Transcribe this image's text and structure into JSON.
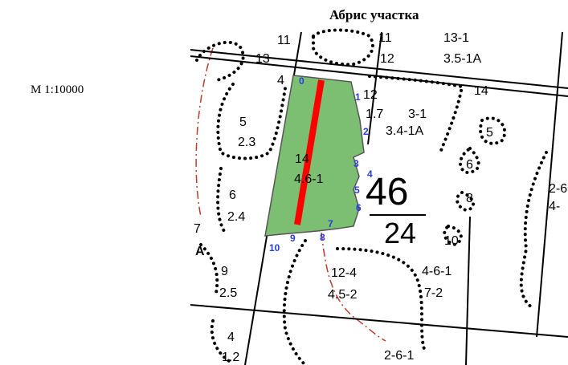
{
  "title": "Абрис участка",
  "scale": "М 1:10000",
  "colors": {
    "plot_fill": "#7dbf72",
    "axis_line": "#ff0000",
    "point_numbers": "#2a3de0",
    "road": "#c0392b"
  },
  "quarter": {
    "number": "46",
    "area": "24"
  },
  "plot": {
    "number": "14",
    "taxation": "4.6-1"
  },
  "point_labels": [
    "0",
    "1",
    "2",
    "3",
    "4",
    "5",
    "6",
    "7",
    "8",
    "9",
    "10"
  ],
  "labels": {
    "l_11a": "11",
    "l_11b": "11",
    "l_1361": "13-1",
    "l_12": "12",
    "l_351a": "3.5-1A",
    "l_13": "13",
    "l_4": "4",
    "l_14r": "14",
    "l_12b": "12",
    "l_17": "1.7",
    "l_31": "3-1",
    "l_341a": "3.4-1A",
    "l_5r": "5",
    "l_5": "5",
    "l_23": "2.3",
    "l_6r": "6",
    "l_6": "6",
    "l_24": "2.4",
    "l_8r": "8",
    "l_2r": "2-6",
    "l_4r": "4-",
    "l_7": "7",
    "l_a": "A",
    "l_10r": "10",
    "l_9": "9",
    "l_25": "2.5",
    "l_124": "12-4",
    "l_452": "4.5-2",
    "l_461": "4-6-1",
    "l_72": "7-2",
    "l_4b": "4",
    "l_12c": "1.2",
    "l_261": "2-6-1"
  }
}
